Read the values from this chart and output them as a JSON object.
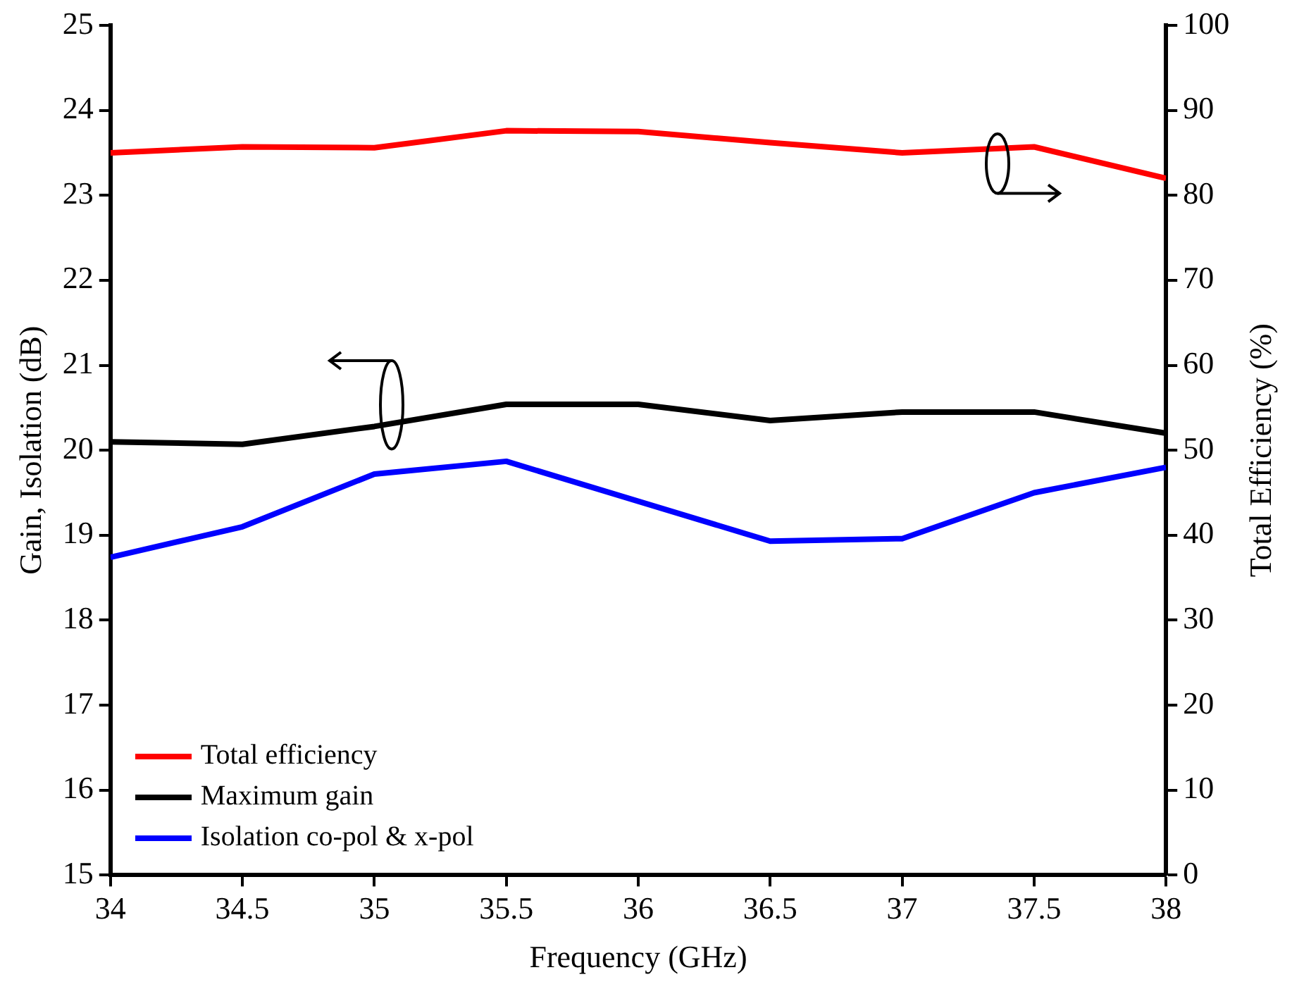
{
  "chart_data": {
    "type": "line",
    "x": [
      34,
      34.5,
      35,
      35.5,
      36,
      36.5,
      37,
      37.5,
      38
    ],
    "series": [
      {
        "name": "Total efficiency",
        "color": "#ff0000",
        "axis": "y2",
        "values": [
          85.0,
          85.7,
          85.6,
          87.6,
          87.5,
          86.2,
          85.0,
          85.7,
          82.0
        ]
      },
      {
        "name": "Maximum gain",
        "color": "#000000",
        "values": [
          20.1,
          20.07,
          20.28,
          20.54,
          20.54,
          20.35,
          20.45,
          20.45,
          20.2
        ]
      },
      {
        "name": "Isolation co-pol & x-pol",
        "color": "#0000ff",
        "values": [
          18.74,
          19.1,
          19.72,
          19.87,
          19.4,
          18.93,
          18.96,
          19.5,
          19.8
        ]
      }
    ],
    "xlabel": "Frequency (GHz)",
    "ylabel": "Gain, Isolation (dB)",
    "y2label": "Total Efficiency (%)",
    "xlim": [
      34,
      38
    ],
    "xticks": [
      34,
      34.5,
      35,
      35.5,
      36,
      36.5,
      37,
      37.5,
      38
    ],
    "ylim": [
      15,
      25
    ],
    "yticks": [
      15,
      16,
      17,
      18,
      19,
      20,
      21,
      22,
      23,
      24,
      25
    ],
    "y2lim": [
      0,
      100
    ],
    "y2ticks": [
      0,
      10,
      20,
      30,
      40,
      50,
      60,
      70,
      80,
      90,
      100
    ],
    "grid": false,
    "legend": "bottom left",
    "marker": "none",
    "line_style": "solid"
  }
}
